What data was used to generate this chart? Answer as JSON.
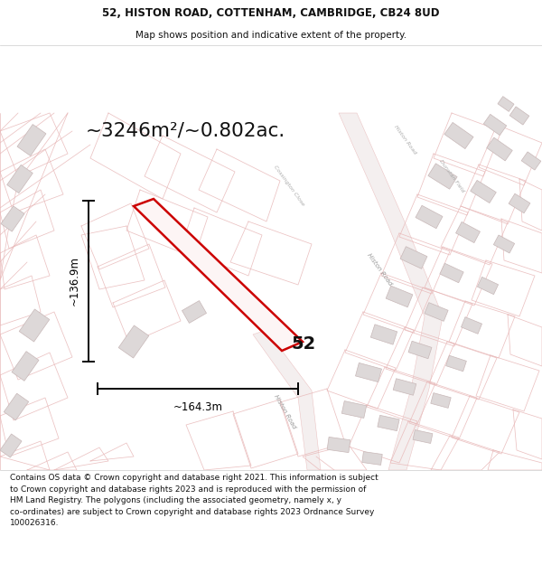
{
  "title_line1": "52, HISTON ROAD, COTTENHAM, CAMBRIDGE, CB24 8UD",
  "title_line2": "Map shows position and indicative extent of the property.",
  "area_text": "~3246m²/~0.802ac.",
  "dim_width": "~164.3m",
  "dim_height": "~136.9m",
  "label_number": "52",
  "footer_lines": [
    "Contains OS data © Crown copyright and database right 2021. This information is subject to Crown copyright and database rights 2023 and is reproduced with the permission of",
    "HM Land Registry. The polygons (including the associated geometry, namely x, y",
    "co-ordinates) are subject to Crown copyright and database rights 2023 Ordnance Survey",
    "100026316."
  ],
  "bg_color": "#f7f2f2",
  "map_bg": "#f7f2f2",
  "title_bg": "#ffffff",
  "footer_bg": "#ffffff",
  "highlight_color": "#cc0000",
  "cadastral_color": "#e8b8b8",
  "road_fill": "#f0e8e8",
  "building_edge": "#c8b8b8",
  "building_fill": "#ddd8d8",
  "dim_line_color": "#000000",
  "text_color": "#111111",
  "road_label_color": "#999999",
  "street_label_color": "#aaaaaa"
}
